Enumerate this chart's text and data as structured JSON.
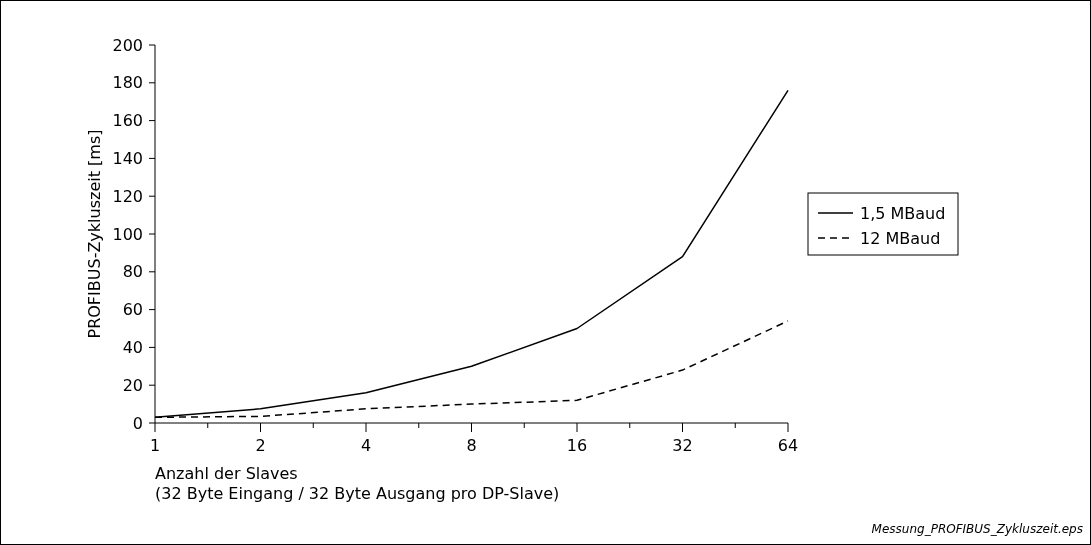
{
  "chart_data": {
    "type": "line",
    "xlabel": "Anzahl der Slaves\n(32 Byte Eingang / 32 Byte Ausgang pro DP-Slave)",
    "ylabel": "PROFIBUS-Zykluszeit [ms]",
    "categories": [
      "1",
      "2",
      "4",
      "8",
      "16",
      "32",
      "64"
    ],
    "series": [
      {
        "name": "1,5 MBaud",
        "color": "#000000",
        "line_style": "solid",
        "values": [
          3,
          7.5,
          16,
          30,
          50,
          88,
          176
        ]
      },
      {
        "name": "12 MBaud",
        "color": "#000000",
        "line_style": "dashed",
        "values": [
          3,
          3.5,
          7.5,
          10,
          12,
          28,
          54
        ]
      }
    ],
    "ylim": [
      0,
      200
    ],
    "yticks": [
      0,
      20,
      40,
      60,
      80,
      100,
      120,
      140,
      160,
      180,
      200
    ],
    "grid": false,
    "legend": "right",
    "marker": "none",
    "annotations": [
      "Messung_PROFIBUS_Zykluszeit.eps"
    ]
  }
}
